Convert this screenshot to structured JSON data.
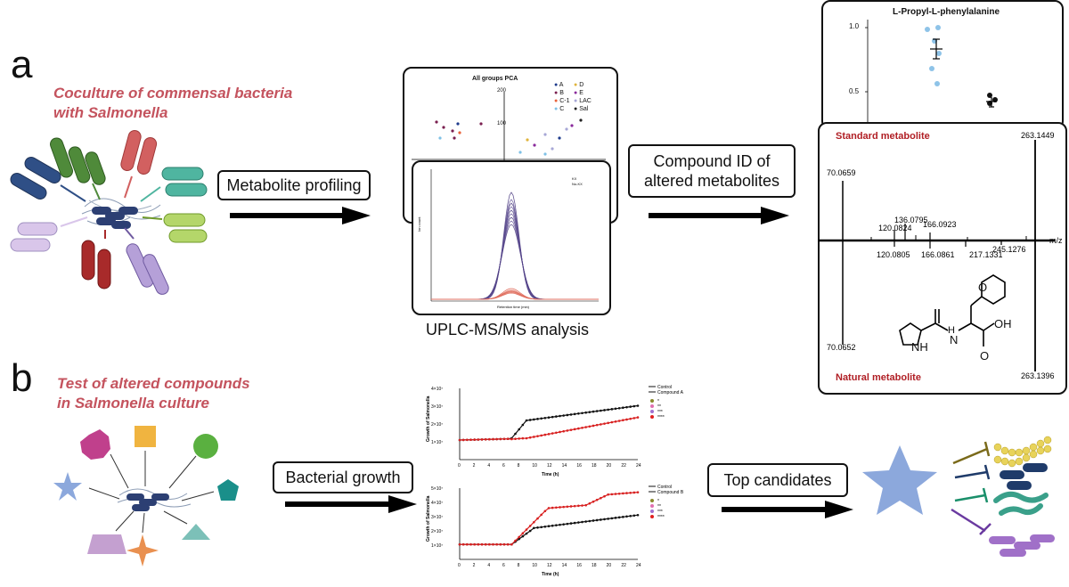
{
  "panel_a": {
    "letter": "a",
    "title_line1": "Coculture of commensal bacteria",
    "title_line2": "with Salmonella",
    "step1": "Metabolite profiling",
    "step2_line1": "Compound ID of",
    "step2_line2": "altered metabolites",
    "uplc_caption": "UPLC-MS/MS analysis"
  },
  "pca": {
    "title": "All groups PCA",
    "legend": [
      "A",
      "B",
      "C-1",
      "C",
      "D",
      "E",
      "LAC",
      "Sal"
    ],
    "legend_colors": [
      "#1f3b8c",
      "#7a1f4f",
      "#e8623a",
      "#7fc1e6",
      "#e0b43c",
      "#8a2a9c",
      "#a7a7d6",
      "#222222"
    ],
    "ticks": [
      "200",
      "100"
    ]
  },
  "chromatogram": {
    "legend": [
      "KX",
      "No-KX"
    ],
    "xlabel": "Retention time (min)",
    "ylabel": "Ion count"
  },
  "dotplot": {
    "title": "L-Propyl-L-phenylalanine",
    "yticks": [
      "1.0",
      "0.5"
    ]
  },
  "ms": {
    "standard_label": "Standard metabolite",
    "natural_label": "Natural metabolite",
    "axis_label": "m/z",
    "top_peaks": [
      "70.0659",
      "120.0824",
      "136.0795",
      "166.0923",
      "263.1449"
    ],
    "bottom_peaks": [
      "120.0805",
      "166.0861",
      "217.1331",
      "245.1276",
      "70.0652",
      "263.1396"
    ],
    "structure_labels": [
      "O",
      "H",
      "N",
      "OH",
      "NH",
      "O"
    ]
  },
  "panel_b": {
    "letter": "b",
    "title_line1": "Test of altered compounds",
    "title_line2": "in Salmonella culture",
    "step1": "Bacterial growth",
    "step2": "Top candidates"
  },
  "growth_a": {
    "ylabel": "Growth of Salmonella",
    "xlabel": "Time (h)",
    "legend": [
      "Control",
      "Compound A"
    ],
    "sig": [
      "*",
      "**",
      "***",
      "****"
    ],
    "yticks": [
      "4×10⁷",
      "3×10⁷",
      "2×10⁷",
      "1×10⁷"
    ],
    "xticks": [
      "0",
      "2",
      "4",
      "6",
      "8",
      "10",
      "12",
      "14",
      "16",
      "18",
      "20",
      "22",
      "24"
    ]
  },
  "growth_b": {
    "ylabel": "Growth of Salmonella",
    "xlabel": "Time (h)",
    "legend": [
      "Control",
      "Compound B"
    ],
    "sig": [
      "*",
      "**",
      "***",
      "****"
    ],
    "yticks": [
      "5×10⁷",
      "4×10⁷",
      "3×10⁷",
      "2×10⁷",
      "1×10⁷"
    ],
    "xticks": [
      "0",
      "2",
      "4",
      "6",
      "8",
      "10",
      "12",
      "14",
      "16",
      "18",
      "20",
      "22",
      "24"
    ]
  },
  "colors": {
    "red_title": "#c4535e",
    "accent_red": "#b01e24"
  }
}
